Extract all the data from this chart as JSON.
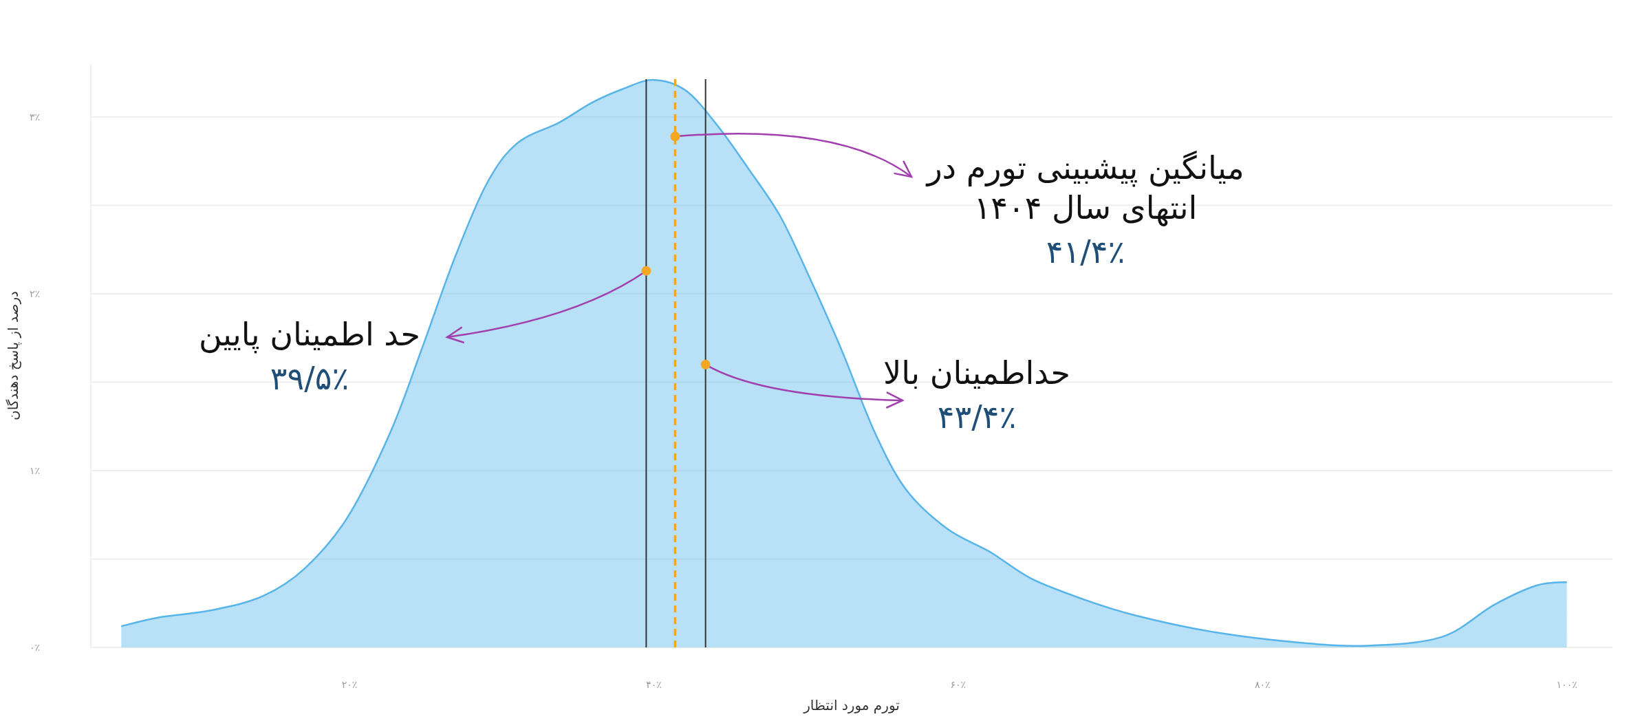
{
  "chart_data": {
    "type": "area",
    "xlabel": "تورم مورد انتظار",
    "ylabel": "درصد از پاسخ دهندگان",
    "x": [
      5,
      7.5,
      10.9,
      14.3,
      17.1,
      19.9,
      22.7,
      24.8,
      26.9,
      29.0,
      31.0,
      33.8,
      35.9,
      38.0,
      40.0,
      42.1,
      44.2,
      46.2,
      48.3,
      50.3,
      52.4,
      54.5,
      56.6,
      59.3,
      62.1,
      64.8,
      68.3,
      71.7,
      76.6,
      82.1,
      86.9,
      91.8,
      95.2,
      98.0,
      100
    ],
    "series": [
      {
        "color": "#56b4e9",
        "values": [
          0.12,
          0.17,
          0.21,
          0.29,
          0.45,
          0.74,
          1.22,
          1.7,
          2.2,
          2.62,
          2.85,
          2.97,
          3.08,
          3.16,
          3.21,
          3.15,
          2.95,
          2.71,
          2.44,
          2.08,
          1.67,
          1.22,
          0.89,
          0.67,
          0.54,
          0.39,
          0.27,
          0.18,
          0.09,
          0.03,
          0.01,
          0.06,
          0.24,
          0.35,
          0.37
        ]
      }
    ],
    "xlim": [
      3,
      103
    ],
    "ylim": [
      0,
      3.3
    ],
    "xticks": [
      {
        "value": 20,
        "label": "۲۰٪"
      },
      {
        "value": 40,
        "label": "۴۰٪"
      },
      {
        "value": 60,
        "label": "۶۰٪"
      },
      {
        "value": 80,
        "label": "۸۰٪"
      },
      {
        "value": 100,
        "label": "۱۰۰٪"
      }
    ],
    "yticks": [
      {
        "value": 0,
        "label": "۰٪"
      },
      {
        "value": 0.5,
        "label": null
      },
      {
        "value": 1,
        "label": "۱٪"
      },
      {
        "value": 1.5,
        "label": null
      },
      {
        "value": 2,
        "label": "۲٪"
      },
      {
        "value": 2.5,
        "label": null
      },
      {
        "value": 3,
        "label": "۳٪"
      }
    ],
    "grid": "y",
    "ref_lines": [
      {
        "axis": "x",
        "value": 39.5,
        "color": "#333333",
        "line_style": "solid"
      },
      {
        "axis": "x",
        "value": 41.4,
        "color": "#f5a623",
        "line_style": "dashed"
      },
      {
        "axis": "x",
        "value": 43.4,
        "color": "#333333",
        "line_style": "solid"
      }
    ],
    "annotations": [
      {
        "text": "حد اطمینان پایین\n۳۹/۵٪",
        "x": 39.5,
        "y": 2.13
      },
      {
        "text": "میانگین پیشبینی تورم در\nانتهای سال ۱۴۰۴\n۴۱/۴٪",
        "x": 41.4,
        "y": 2.89
      },
      {
        "text": "حداطمینان بالا\n۴۳/۴٪",
        "x": 43.4,
        "y": 1.6
      }
    ]
  }
}
